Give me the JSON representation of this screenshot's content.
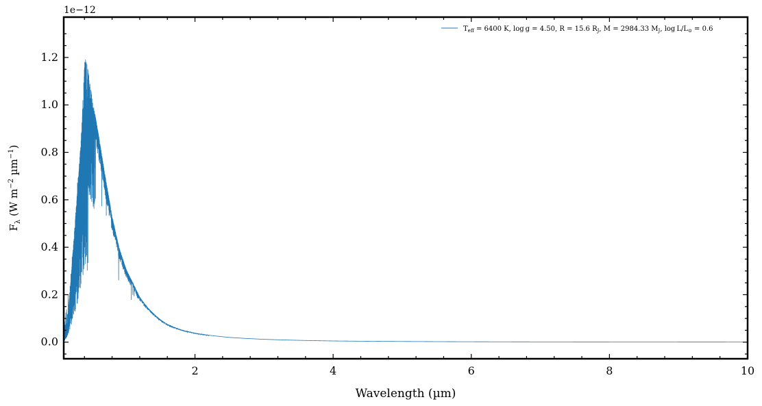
{
  "chart_data": {
    "type": "line",
    "xlabel": "Wavelength (µm)",
    "ylabel": "Fλ (W m⁻² µm⁻¹)",
    "ylabel_parts": {
      "main": "F",
      "sub": "λ",
      "units_pre": " (W m",
      "exp1": "−2",
      "units_mid": " µm",
      "exp2": "−1",
      "units_post": ")"
    },
    "y_scale_label": "1e−12",
    "xlim": [
      0.1,
      10
    ],
    "ylim": [
      -0.07,
      1.37
    ],
    "y_multiplier": 1e-12,
    "x_ticks": [
      2,
      4,
      6,
      8,
      10
    ],
    "x_tick_labels": [
      "2",
      "4",
      "6",
      "8",
      "10"
    ],
    "y_ticks": [
      0.0,
      0.2,
      0.4,
      0.6,
      0.8,
      1.0,
      1.2
    ],
    "y_tick_labels": [
      "0.0",
      "0.2",
      "0.4",
      "0.6",
      "0.8",
      "1.0",
      "1.2"
    ],
    "grid": false,
    "legend_position": "top-right",
    "series": [
      {
        "name": "Teff = 6400 K, log g = 4.50, R = 15.6 RJ, M = 2984.33 MJ, log L/L⊙ = 0.6",
        "color": "#1f77b4",
        "x": [
          0.1,
          0.15,
          0.2,
          0.25,
          0.3,
          0.35,
          0.38,
          0.4,
          0.42,
          0.45,
          0.5,
          0.6,
          0.7,
          0.8,
          0.9,
          1.0,
          1.2,
          1.4,
          1.6,
          1.8,
          2.0,
          2.5,
          3.0,
          4.0,
          5.0,
          6.0,
          7.0,
          8.0,
          9.0,
          10.0
        ],
        "y": [
          0.01,
          0.08,
          0.25,
          0.45,
          0.65,
          0.85,
          1.05,
          1.18,
          1.2,
          1.15,
          1.05,
          0.88,
          0.7,
          0.53,
          0.4,
          0.31,
          0.19,
          0.12,
          0.075,
          0.052,
          0.038,
          0.02,
          0.012,
          0.005,
          0.0028,
          0.0017,
          0.0011,
          0.0008,
          0.0006,
          0.0004
        ]
      }
    ]
  },
  "legend": {
    "label_parts": {
      "t": "T",
      "t_sub": "eff",
      "p1": " = 6400 K, log g = 4.50, R = 15.6 R",
      "r_sub": "J",
      "p2": ", M = 2984.33 M",
      "m_sub": "J",
      "p3": ", log L/L",
      "l_sub": "⊙",
      "p4": " = 0.6"
    }
  },
  "colors": {
    "series": "#1f77b4",
    "axes": "#000000",
    "background": "#ffffff"
  }
}
